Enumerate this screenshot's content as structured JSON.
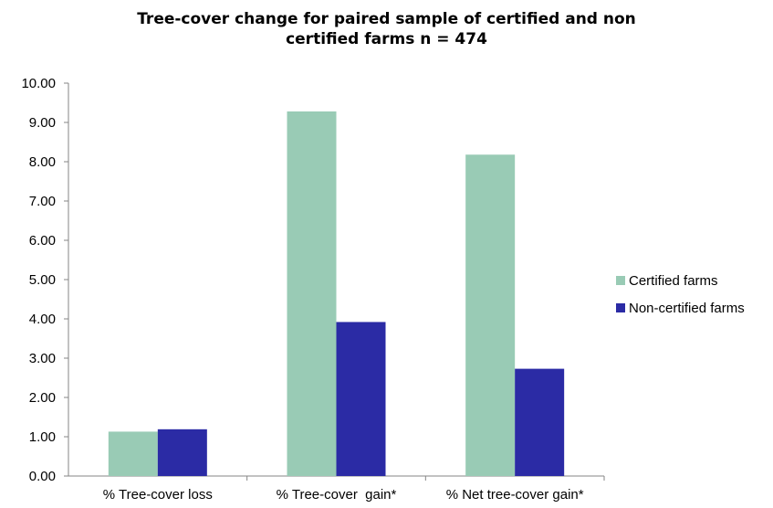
{
  "chart_data": {
    "type": "bar",
    "title_line1": "Tree-cover change for paired sample of certified and non",
    "title_line2": "certified farms n = 474",
    "xlabel": "",
    "ylabel": "",
    "ylim": [
      0,
      10
    ],
    "yticks": [
      "0.00",
      "1.00",
      "2.00",
      "3.00",
      "4.00",
      "5.00",
      "6.00",
      "7.00",
      "8.00",
      "9.00",
      "10.00"
    ],
    "categories": [
      "% Tree-cover loss",
      "% Tree-cover  gain*",
      "% Net tree-cover gain*"
    ],
    "series": [
      {
        "name": "Certified farms",
        "color": "#99CBB5",
        "values": [
          1.13,
          9.28,
          8.18
        ]
      },
      {
        "name": "Non-certified farms",
        "color": "#2B2BA5",
        "values": [
          1.19,
          3.92,
          2.73
        ]
      }
    ],
    "grid": false,
    "legend_position": "right"
  }
}
